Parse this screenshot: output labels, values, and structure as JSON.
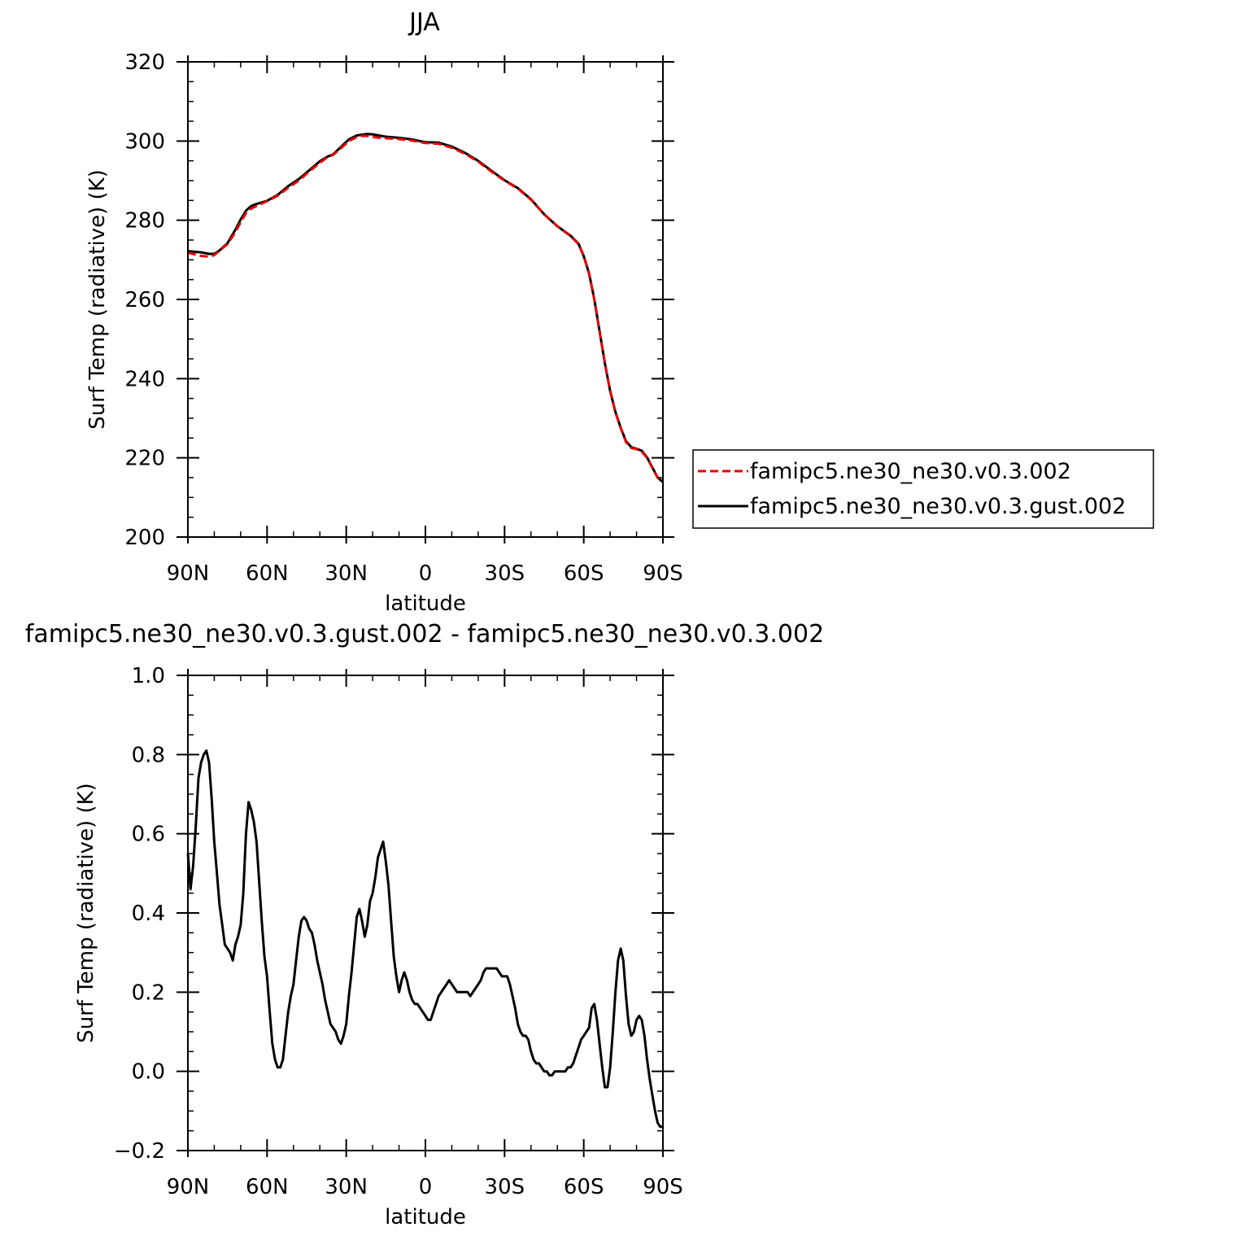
{
  "chart_data": [
    {
      "type": "line",
      "title": "JJA",
      "xlabel": "latitude",
      "ylabel": "Surf Temp (radiative) (K)",
      "xlim": [
        90,
        -90
      ],
      "ylim": [
        200,
        320
      ],
      "x_ticks": [
        90,
        60,
        30,
        0,
        -30,
        -60,
        -90
      ],
      "x_tick_labels": [
        "90N",
        "60N",
        "30N",
        "0",
        "30S",
        "60S",
        "90S"
      ],
      "y_ticks": [
        200,
        220,
        240,
        260,
        280,
        300,
        320
      ],
      "y_tick_labels": [
        "200",
        "220",
        "240",
        "260",
        "280",
        "300",
        "320"
      ],
      "series": [
        {
          "name": "famipc5.ne30_ne30.v0.3.002",
          "color": "#e60000",
          "dash": "dashed",
          "x": [
            90,
            85,
            82,
            80,
            78,
            75,
            72,
            70,
            68,
            66,
            64,
            60,
            56,
            52,
            48,
            44,
            40,
            37,
            35,
            32,
            29,
            26,
            24,
            22,
            20,
            15,
            10,
            5,
            0,
            -5,
            -10,
            -15,
            -20,
            -25,
            -30,
            -35,
            -40,
            -45,
            -50,
            -55,
            -58,
            -60,
            -62,
            -64,
            -66,
            -68,
            -70,
            -72,
            -74,
            -76,
            -78,
            -80,
            -82,
            -84,
            -86,
            -88,
            -90
          ],
          "values": [
            271.8,
            271.0,
            270.8,
            271.2,
            272.3,
            274.0,
            277.0,
            279.5,
            281.8,
            283.0,
            283.6,
            284.8,
            286.2,
            288.2,
            290.0,
            292.3,
            294.5,
            296.0,
            296.5,
            298.2,
            300.0,
            301.0,
            301.3,
            301.3,
            301.0,
            300.7,
            300.5,
            300.1,
            299.5,
            299.3,
            298.3,
            296.8,
            294.8,
            292.3,
            290.0,
            288.0,
            285.2,
            281.5,
            278.5,
            276.0,
            274.0,
            271.0,
            266.5,
            260.0,
            252.0,
            244.0,
            237.0,
            231.5,
            227.5,
            224.0,
            222.5,
            222.2,
            221.6,
            220.0,
            217.5,
            215.0,
            214.0
          ]
        },
        {
          "name": "famipc5.ne30_ne30.v0.3.gust.002",
          "color": "#000000",
          "dash": "solid",
          "x": [
            90,
            85,
            82,
            80,
            78,
            75,
            72,
            70,
            68,
            66,
            64,
            60,
            56,
            52,
            48,
            44,
            40,
            37,
            35,
            32,
            29,
            26,
            24,
            22,
            20,
            15,
            10,
            5,
            0,
            -5,
            -10,
            -15,
            -20,
            -25,
            -30,
            -35,
            -40,
            -45,
            -50,
            -55,
            -58,
            -60,
            -62,
            -64,
            -66,
            -68,
            -70,
            -72,
            -74,
            -76,
            -78,
            -80,
            -82,
            -84,
            -86,
            -88,
            -90
          ],
          "values": [
            272.2,
            271.9,
            271.5,
            271.5,
            272.4,
            274.2,
            277.6,
            280.2,
            282.4,
            283.6,
            284.1,
            284.9,
            286.4,
            288.6,
            290.4,
            292.6,
            294.9,
            296.1,
            296.6,
            298.5,
            300.4,
            301.4,
            301.6,
            301.8,
            301.7,
            301.1,
            300.8,
            300.4,
            299.7,
            299.6,
            298.6,
            297.0,
            295.0,
            292.5,
            290.1,
            288.1,
            285.3,
            281.5,
            278.5,
            276.1,
            274.1,
            270.9,
            266.6,
            260.1,
            252.0,
            243.9,
            236.9,
            231.6,
            227.6,
            224.2,
            222.7,
            222.3,
            221.8,
            220.1,
            217.6,
            215.0,
            213.9
          ]
        }
      ],
      "legend": {
        "placement": "right",
        "entries": [
          "famipc5.ne30_ne30.v0.3.002",
          "famipc5.ne30_ne30.v0.3.gust.002"
        ]
      }
    },
    {
      "type": "line",
      "title": "famipc5.ne30_ne30.v0.3.gust.002 - famipc5.ne30_ne30.v0.3.002",
      "xlabel": "latitude",
      "ylabel": "Surf Temp (radiative) (K)",
      "xlim": [
        90,
        -90
      ],
      "ylim": [
        -0.2,
        1.0
      ],
      "x_ticks": [
        90,
        60,
        30,
        0,
        -30,
        -60,
        -90
      ],
      "x_tick_labels": [
        "90N",
        "60N",
        "30N",
        "0",
        "30S",
        "60S",
        "90S"
      ],
      "y_ticks": [
        -0.2,
        0.0,
        0.2,
        0.4,
        0.6,
        0.8,
        1.0
      ],
      "y_tick_labels": [
        "−0.2",
        "0.0",
        "0.2",
        "0.4",
        "0.6",
        "0.8",
        "1.0"
      ],
      "series": [
        {
          "color": "#000000",
          "dash": "solid",
          "x": [
            90,
            89,
            88,
            87,
            86,
            85,
            84,
            83,
            82,
            81,
            80,
            79,
            78,
            77,
            76,
            75,
            74,
            73,
            72,
            71,
            70,
            69,
            68,
            67,
            66,
            65,
            64,
            63,
            62,
            61,
            60,
            59,
            58,
            57,
            56,
            55,
            54,
            53,
            52,
            51,
            50,
            49,
            48,
            47,
            46,
            45,
            44,
            43,
            42,
            41,
            40,
            39,
            38,
            37,
            36,
            35,
            34,
            33,
            32,
            31,
            30,
            29,
            28,
            27,
            26,
            25,
            24,
            23,
            22,
            21,
            20,
            19,
            18,
            17,
            16,
            15,
            14,
            13,
            12,
            11,
            10,
            9,
            8,
            7,
            6,
            5,
            4,
            3,
            2,
            1,
            0,
            -1,
            -2,
            -3,
            -4,
            -5,
            -6,
            -7,
            -8,
            -9,
            -10,
            -11,
            -12,
            -13,
            -14,
            -15,
            -16,
            -17,
            -18,
            -19,
            -20,
            -21,
            -22,
            -23,
            -24,
            -25,
            -26,
            -27,
            -28,
            -29,
            -30,
            -31,
            -32,
            -33,
            -34,
            -35,
            -36,
            -37,
            -38,
            -39,
            -40,
            -41,
            -42,
            -43,
            -44,
            -45,
            -46,
            -47,
            -48,
            -49,
            -50,
            -51,
            -52,
            -53,
            -54,
            -55,
            -56,
            -57,
            -58,
            -59,
            -60,
            -61,
            -62,
            -63,
            -64,
            -65,
            -66,
            -67,
            -68,
            -69,
            -70,
            -71,
            -72,
            -73,
            -74,
            -75,
            -76,
            -77,
            -78,
            -79,
            -80,
            -81,
            -82,
            -83,
            -84,
            -85,
            -86,
            -87,
            -88,
            -89,
            -90
          ],
          "values": [
            0.55,
            0.46,
            0.52,
            0.62,
            0.74,
            0.78,
            0.8,
            0.81,
            0.78,
            0.69,
            0.58,
            0.5,
            0.42,
            0.37,
            0.32,
            0.31,
            0.3,
            0.28,
            0.32,
            0.34,
            0.37,
            0.45,
            0.6,
            0.68,
            0.66,
            0.63,
            0.58,
            0.48,
            0.38,
            0.29,
            0.24,
            0.15,
            0.07,
            0.03,
            0.01,
            0.01,
            0.03,
            0.09,
            0.15,
            0.19,
            0.22,
            0.28,
            0.34,
            0.38,
            0.39,
            0.38,
            0.36,
            0.35,
            0.32,
            0.28,
            0.25,
            0.22,
            0.18,
            0.15,
            0.12,
            0.11,
            0.1,
            0.08,
            0.07,
            0.09,
            0.12,
            0.19,
            0.25,
            0.32,
            0.39,
            0.41,
            0.38,
            0.34,
            0.37,
            0.43,
            0.45,
            0.49,
            0.54,
            0.56,
            0.58,
            0.53,
            0.47,
            0.38,
            0.29,
            0.24,
            0.2,
            0.23,
            0.25,
            0.23,
            0.2,
            0.18,
            0.17,
            0.17,
            0.16,
            0.15,
            0.14,
            0.13,
            0.13,
            0.15,
            0.17,
            0.19,
            0.2,
            0.21,
            0.22,
            0.23,
            0.22,
            0.21,
            0.2,
            0.2,
            0.2,
            0.2,
            0.2,
            0.19,
            0.2,
            0.21,
            0.22,
            0.23,
            0.25,
            0.26,
            0.26,
            0.26,
            0.26,
            0.26,
            0.25,
            0.24,
            0.24,
            0.24,
            0.22,
            0.19,
            0.16,
            0.12,
            0.1,
            0.09,
            0.09,
            0.08,
            0.05,
            0.03,
            0.02,
            0.02,
            0.01,
            0.0,
            0.0,
            -0.01,
            -0.01,
            0.0,
            0.0,
            0.0,
            0.0,
            0.0,
            0.01,
            0.01,
            0.02,
            0.04,
            0.06,
            0.08,
            0.09,
            0.1,
            0.11,
            0.16,
            0.17,
            0.13,
            0.07,
            0.01,
            -0.04,
            -0.04,
            0.01,
            0.1,
            0.2,
            0.28,
            0.31,
            0.28,
            0.19,
            0.12,
            0.09,
            0.1,
            0.13,
            0.14,
            0.13,
            0.09,
            0.03,
            -0.02,
            -0.06,
            -0.1,
            -0.13,
            -0.14,
            -0.14
          ]
        }
      ]
    }
  ]
}
